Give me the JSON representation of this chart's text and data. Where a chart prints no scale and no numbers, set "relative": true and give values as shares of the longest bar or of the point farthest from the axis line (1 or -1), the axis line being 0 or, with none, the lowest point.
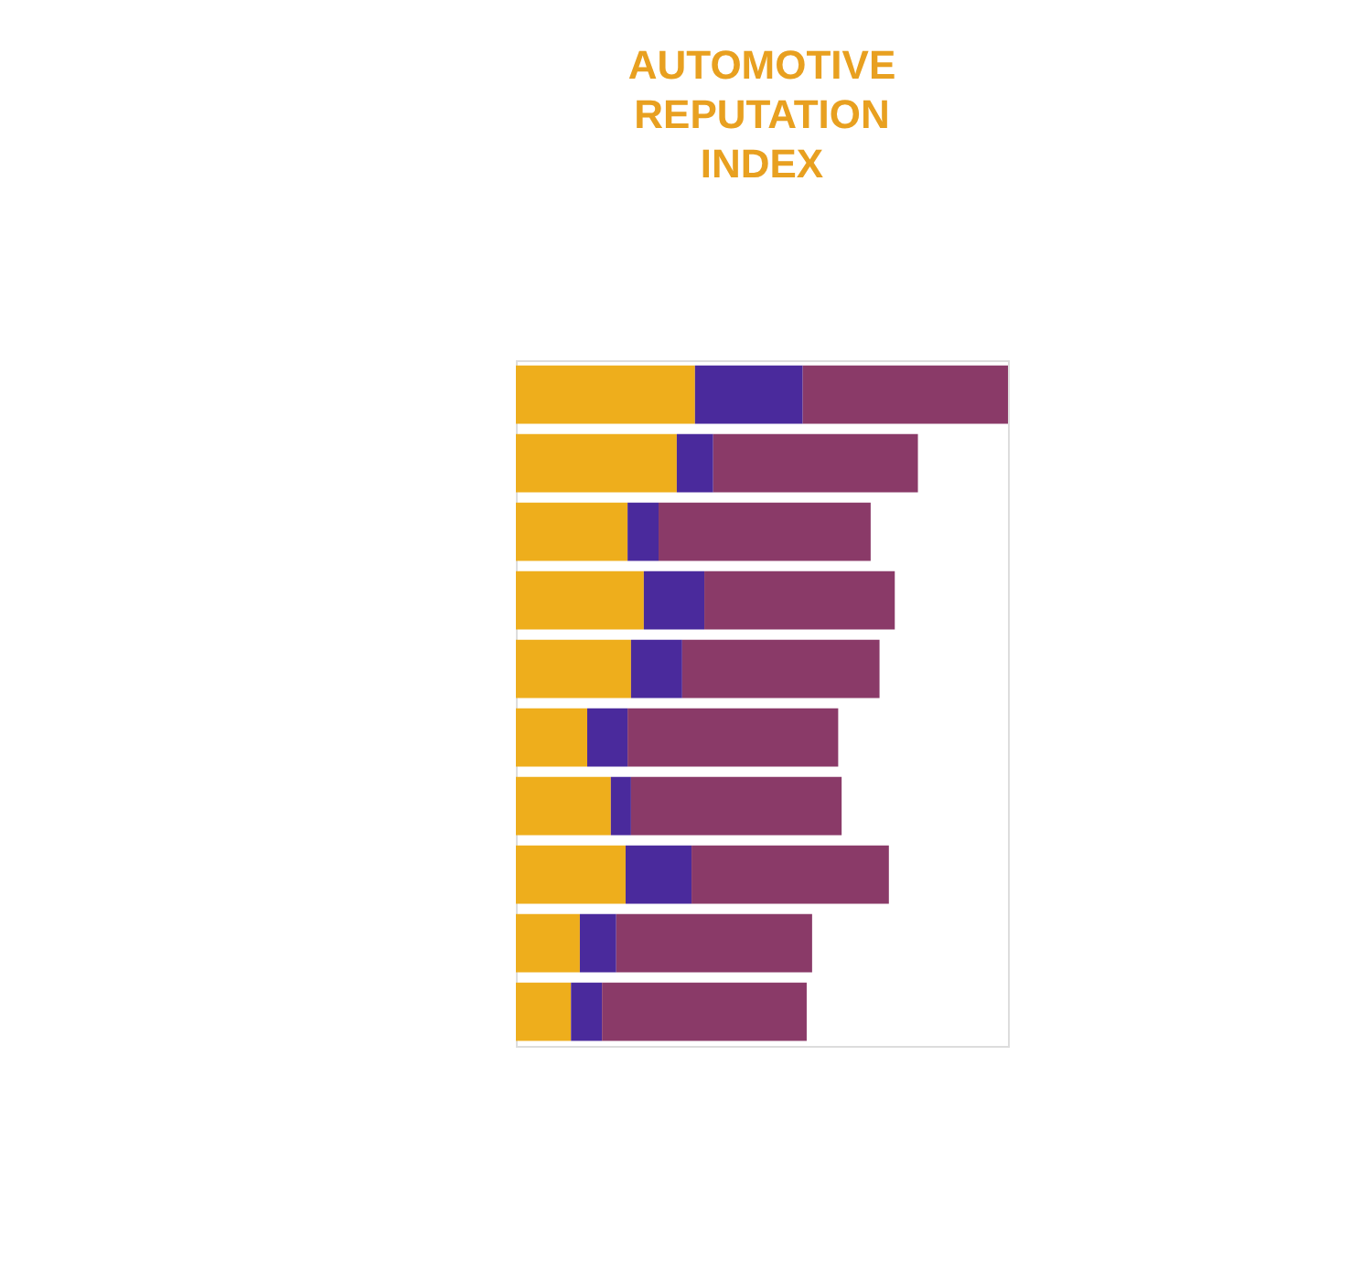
{
  "chart_data": {
    "type": "bar",
    "title": "AUTOMOTIVE REPUTATION INDEX",
    "orientation": "horizontal",
    "stacked": true,
    "relative": true,
    "legend": false,
    "categories": [
      null,
      null,
      null,
      null,
      null,
      null,
      null,
      null,
      null,
      null
    ],
    "series": [
      {
        "color": "#eeae1c",
        "values": [
          0.364,
          0.327,
          0.227,
          0.26,
          0.234,
          0.145,
          0.193,
          0.223,
          0.13,
          0.112
        ]
      },
      {
        "color": "#4a2a9c",
        "values": [
          0.219,
          0.074,
          0.063,
          0.123,
          0.104,
          0.082,
          0.041,
          0.134,
          0.074,
          0.063
        ]
      },
      {
        "color": "#8a3a68",
        "values": [
          0.417,
          0.416,
          0.431,
          0.387,
          0.401,
          0.428,
          0.428,
          0.401,
          0.398,
          0.416
        ]
      }
    ]
  }
}
